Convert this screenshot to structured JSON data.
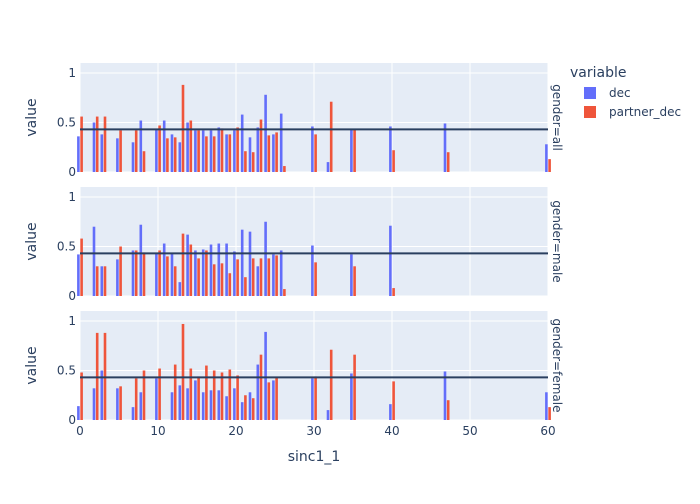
{
  "chart_data": {
    "type": "bar",
    "xlabel": "sinc1_1",
    "ylabel": "value",
    "xlim": [
      0,
      60
    ],
    "ylim": [
      0,
      1
    ],
    "x_ticks": [
      0,
      10,
      20,
      30,
      40,
      50,
      60
    ],
    "y_ticks": [
      0,
      0.5,
      1
    ],
    "y_tick_labels": [
      "0",
      "0.5",
      "1"
    ],
    "reference_line": 0.43,
    "grid": true,
    "legend": {
      "title": "variable",
      "placement": "top-right",
      "items": [
        {
          "name": "dec",
          "color": "#636efa"
        },
        {
          "name": "partner_dec",
          "color": "#ef553b"
        }
      ]
    },
    "colors": {
      "dec": "#636efa",
      "partner_dec": "#ef553b",
      "plot_bg": "#e5ecf6",
      "hline": "#2a3f5f"
    },
    "panels": [
      {
        "facet": "gender=all",
        "x": [
          0,
          2,
          3,
          5,
          7,
          8,
          10,
          11,
          12,
          13,
          14,
          15,
          16,
          17,
          18,
          19,
          20,
          21,
          22,
          23,
          24,
          25,
          26,
          30,
          32,
          35,
          40,
          47,
          60
        ],
        "series": [
          {
            "name": "dec",
            "values": [
              0.36,
              0.5,
              0.38,
              0.34,
              0.3,
              0.52,
              0.43,
              0.52,
              0.38,
              0.3,
              0.5,
              0.42,
              0.42,
              0.42,
              0.45,
              0.38,
              0.42,
              0.58,
              0.35,
              0.45,
              0.78,
              0.38,
              0.59,
              0.46,
              0.1,
              0.43,
              0.46,
              0.49,
              0.28
            ]
          },
          {
            "name": "partner_dec",
            "values": [
              0.56,
              0.56,
              0.56,
              0.42,
              0.42,
              0.21,
              0.47,
              0.34,
              0.35,
              0.88,
              0.52,
              0.42,
              0.36,
              0.36,
              0.44,
              0.38,
              0.45,
              0.21,
              0.2,
              0.53,
              0.37,
              0.4,
              0.06,
              0.38,
              0.71,
              0.43,
              0.22,
              0.2,
              0.13
            ]
          }
        ]
      },
      {
        "facet": "gender=male",
        "x": [
          0,
          2,
          3,
          5,
          7,
          8,
          10,
          11,
          12,
          13,
          14,
          15,
          16,
          17,
          18,
          19,
          20,
          21,
          22,
          23,
          24,
          25,
          26,
          30,
          35,
          40
        ],
        "series": [
          {
            "name": "dec",
            "values": [
              0.42,
              0.7,
              0.3,
              0.37,
              0.46,
              0.72,
              0.43,
              0.53,
              0.43,
              0.14,
              0.62,
              0.46,
              0.47,
              0.52,
              0.53,
              0.53,
              0.45,
              0.67,
              0.65,
              0.3,
              0.75,
              0.42,
              0.46,
              0.51,
              0.42,
              0.71
            ]
          },
          {
            "name": "partner_dec",
            "values": [
              0.58,
              0.3,
              0.3,
              0.5,
              0.46,
              0.44,
              0.46,
              0.4,
              0.3,
              0.63,
              0.52,
              0.38,
              0.46,
              0.32,
              0.33,
              0.23,
              0.37,
              0.19,
              0.38,
              0.38,
              0.38,
              0.41,
              0.07,
              0.34,
              0.3,
              0.08
            ]
          }
        ]
      },
      {
        "facet": "gender=female",
        "x": [
          0,
          2,
          3,
          5,
          7,
          8,
          10,
          12,
          13,
          14,
          15,
          16,
          17,
          18,
          19,
          20,
          21,
          22,
          23,
          24,
          25,
          30,
          32,
          35,
          40,
          47,
          60
        ],
        "series": [
          {
            "name": "dec",
            "values": [
              0.14,
              0.32,
              0.5,
              0.32,
              0.13,
              0.28,
              0.42,
              0.28,
              0.35,
              0.32,
              0.4,
              0.28,
              0.3,
              0.3,
              0.24,
              0.32,
              0.18,
              0.28,
              0.56,
              0.89,
              0.4,
              0.42,
              0.1,
              0.47,
              0.16,
              0.49,
              0.28
            ]
          },
          {
            "name": "partner_dec",
            "values": [
              0.48,
              0.88,
              0.88,
              0.34,
              0.42,
              0.5,
              0.52,
              0.56,
              0.97,
              0.52,
              0.44,
              0.55,
              0.5,
              0.48,
              0.51,
              0.45,
              0.25,
              0.22,
              0.66,
              0.38,
              0.43,
              0.44,
              0.71,
              0.66,
              0.39,
              0.2,
              0.13
            ]
          }
        ]
      }
    ]
  }
}
